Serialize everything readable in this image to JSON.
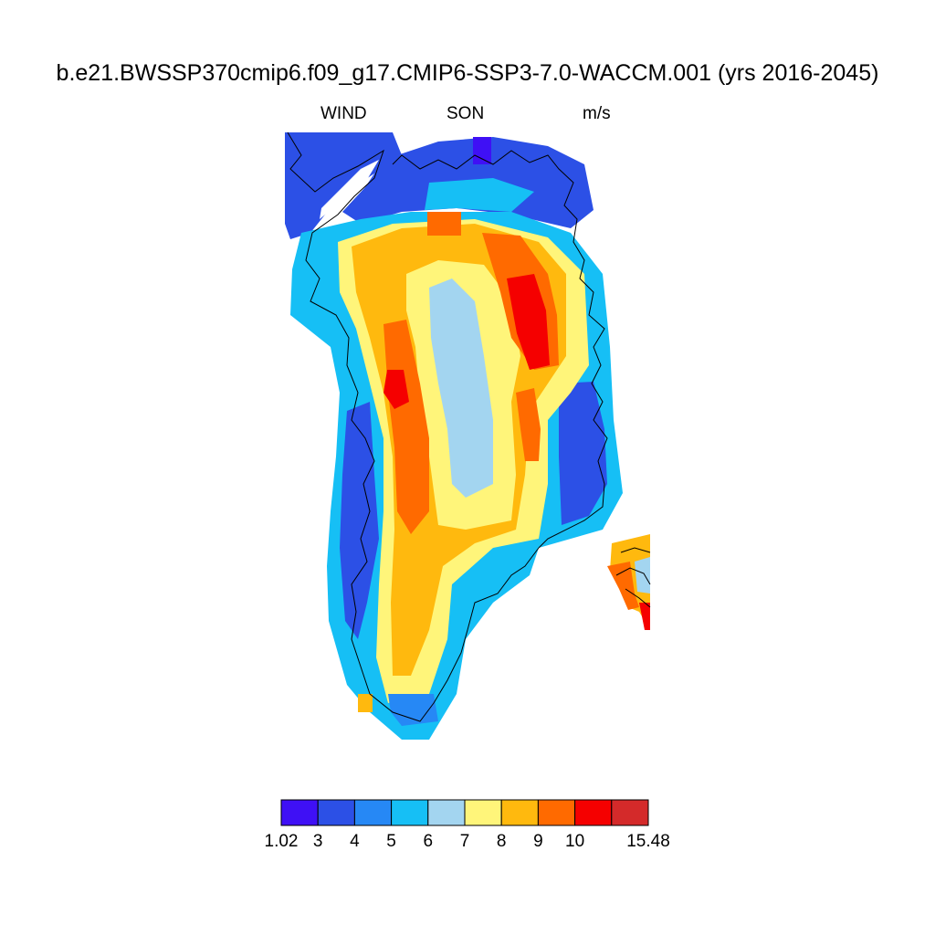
{
  "title": "b.e21.BWSSP370cmip6.f09_g17.CMIP6-SSP3-7.0-WACCM.001 (yrs 2016-2045)",
  "subtitle": {
    "left": "WIND",
    "center": "SON",
    "right": "m/s"
  },
  "map": {
    "variable": "WIND",
    "season": "SON",
    "units": "m/s",
    "region": "Greenland",
    "coastline_color": "#000000"
  },
  "colorbar": {
    "colors": [
      "#3f10f5",
      "#2c50e6",
      "#2688f5",
      "#16bff5",
      "#a3d5f0",
      "#fff57a",
      "#ffb90e",
      "#ff6a00",
      "#f50000",
      "#d42a2a"
    ],
    "labels": [
      "1.02",
      "3",
      "4",
      "5",
      "6",
      "7",
      "8",
      "9",
      "10",
      "15.48"
    ]
  }
}
